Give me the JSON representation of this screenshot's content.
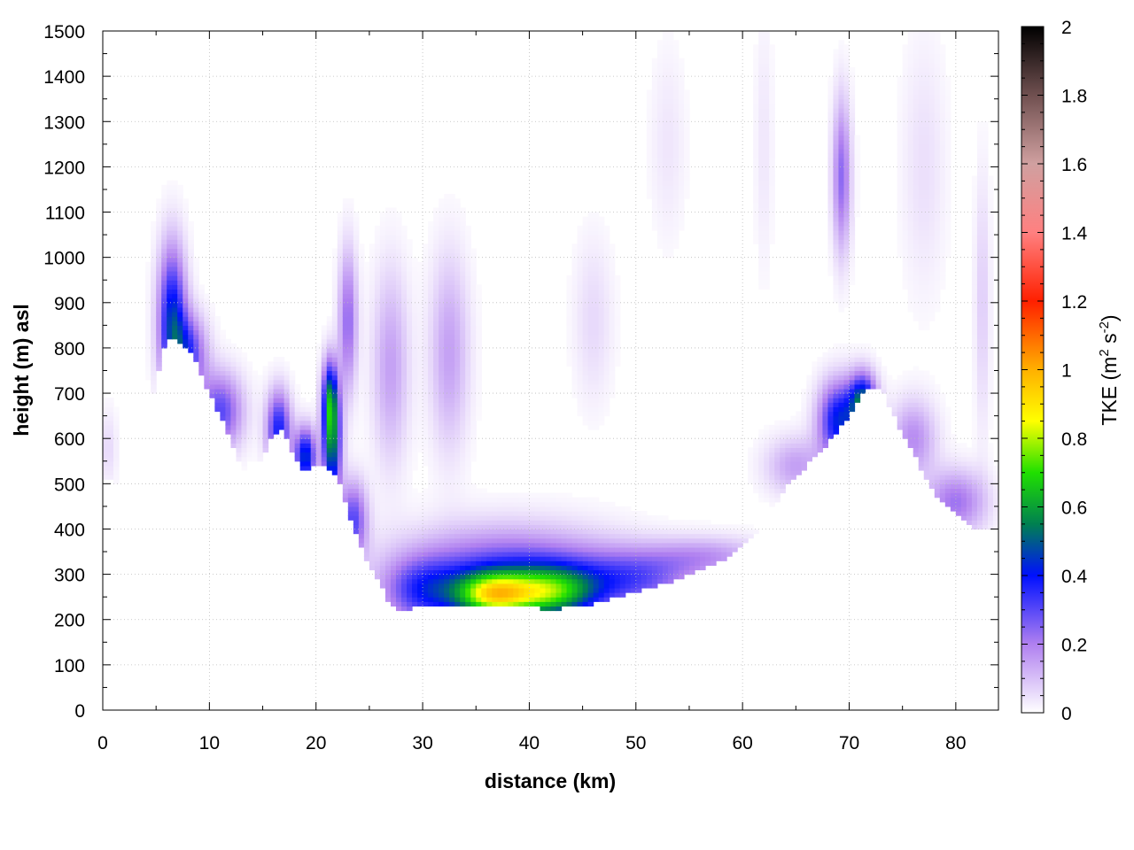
{
  "chart_data": {
    "type": "heatmap",
    "xlabel": "distance (km)",
    "ylabel": "height (m) asl",
    "xlim": [
      0,
      84
    ],
    "ylim": [
      0,
      1500
    ],
    "x_ticks": [
      0,
      10,
      20,
      30,
      40,
      50,
      60,
      70,
      80
    ],
    "y_ticks": [
      0,
      100,
      200,
      300,
      400,
      500,
      600,
      700,
      800,
      900,
      1000,
      1100,
      1200,
      1300,
      1400,
      1500
    ],
    "grid": true,
    "colorbar": {
      "label_main": "TKE (m",
      "label_sup1": "2",
      "label_mid": " s",
      "label_sup2": "-2",
      "label_end": ")",
      "range": [
        0,
        2
      ],
      "ticks": [
        "0",
        "0.2",
        "0.4",
        "0.6",
        "0.8",
        "1",
        "1.2",
        "1.4",
        "1.6",
        "1.8",
        "2"
      ],
      "stops": [
        {
          "v": 0.0,
          "color": "#ffffff"
        },
        {
          "v": 0.2,
          "color": "#b080f0"
        },
        {
          "v": 0.4,
          "color": "#0010ff"
        },
        {
          "v": 0.55,
          "color": "#008050"
        },
        {
          "v": 0.7,
          "color": "#20e000"
        },
        {
          "v": 0.85,
          "color": "#ffff00"
        },
        {
          "v": 1.0,
          "color": "#ffb000"
        },
        {
          "v": 1.2,
          "color": "#ff2000"
        },
        {
          "v": 1.4,
          "color": "#ff8080"
        },
        {
          "v": 1.6,
          "color": "#d0a0a0"
        },
        {
          "v": 1.8,
          "color": "#705050"
        },
        {
          "v": 2.0,
          "color": "#000000"
        }
      ]
    },
    "terrain": [
      [
        0,
        510
      ],
      [
        1,
        505
      ],
      [
        2,
        500
      ],
      [
        3,
        520
      ],
      [
        4,
        620
      ],
      [
        5,
        730
      ],
      [
        6,
        820
      ],
      [
        7,
        820
      ],
      [
        8,
        800
      ],
      [
        9,
        760
      ],
      [
        10,
        700
      ],
      [
        11,
        650
      ],
      [
        12,
        600
      ],
      [
        13,
        540
      ],
      [
        14,
        520
      ],
      [
        15,
        560
      ],
      [
        16,
        610
      ],
      [
        17,
        620
      ],
      [
        18,
        560
      ],
      [
        19,
        525
      ],
      [
        20,
        540
      ],
      [
        21,
        540
      ],
      [
        22,
        520
      ],
      [
        23,
        440
      ],
      [
        24,
        370
      ],
      [
        25,
        320
      ],
      [
        26,
        280
      ],
      [
        27,
        230
      ],
      [
        28,
        215
      ],
      [
        29,
        225
      ],
      [
        30,
        235
      ],
      [
        32,
        235
      ],
      [
        34,
        230
      ],
      [
        36,
        228
      ],
      [
        38,
        228
      ],
      [
        40,
        228
      ],
      [
        42,
        222
      ],
      [
        44,
        230
      ],
      [
        46,
        235
      ],
      [
        48,
        250
      ],
      [
        50,
        260
      ],
      [
        52,
        275
      ],
      [
        54,
        290
      ],
      [
        56,
        310
      ],
      [
        58,
        330
      ],
      [
        60,
        360
      ],
      [
        62,
        410
      ],
      [
        64,
        490
      ],
      [
        66,
        540
      ],
      [
        68,
        590
      ],
      [
        70,
        650
      ],
      [
        71,
        690
      ],
      [
        72,
        715
      ],
      [
        73,
        710
      ],
      [
        74,
        660
      ],
      [
        75,
        610
      ],
      [
        76,
        570
      ],
      [
        77,
        520
      ],
      [
        78,
        480
      ],
      [
        79,
        460
      ],
      [
        80,
        440
      ],
      [
        81,
        420
      ],
      [
        82,
        400
      ],
      [
        83,
        400
      ]
    ],
    "tke_features": [
      {
        "x": 6.5,
        "y": 870,
        "sx": 0.9,
        "sy": 110,
        "v": 0.42
      },
      {
        "x": 8.0,
        "y": 790,
        "sx": 1.2,
        "sy": 60,
        "v": 0.32
      },
      {
        "x": 11.0,
        "y": 660,
        "sx": 1.5,
        "sy": 60,
        "v": 0.3
      },
      {
        "x": 16.5,
        "y": 620,
        "sx": 0.8,
        "sy": 60,
        "v": 0.38
      },
      {
        "x": 19.0,
        "y": 560,
        "sx": 0.7,
        "sy": 45,
        "v": 0.45
      },
      {
        "x": 21.5,
        "y": 590,
        "sx": 0.6,
        "sy": 90,
        "v": 0.52
      },
      {
        "x": 21.3,
        "y": 690,
        "sx": 0.5,
        "sy": 60,
        "v": 0.38
      },
      {
        "x": 23.0,
        "y": 860,
        "sx": 0.6,
        "sy": 110,
        "v": 0.24
      },
      {
        "x": 23.5,
        "y": 420,
        "sx": 0.9,
        "sy": 60,
        "v": 0.3
      },
      {
        "x": 27.0,
        "y": 760,
        "sx": 1.2,
        "sy": 150,
        "v": 0.15
      },
      {
        "x": 32.5,
        "y": 790,
        "sx": 1.3,
        "sy": 150,
        "v": 0.15
      },
      {
        "x": 36.5,
        "y": 255,
        "sx": 2.5,
        "sy": 35,
        "v": 0.62
      },
      {
        "x": 42.0,
        "y": 260,
        "sx": 3.0,
        "sy": 40,
        "v": 0.5
      },
      {
        "x": 38.0,
        "y": 300,
        "sx": 7.0,
        "sy": 70,
        "v": 0.32
      },
      {
        "x": 30.0,
        "y": 260,
        "sx": 2.5,
        "sy": 50,
        "v": 0.25
      },
      {
        "x": 50.0,
        "y": 290,
        "sx": 4.0,
        "sy": 45,
        "v": 0.24
      },
      {
        "x": 57.0,
        "y": 340,
        "sx": 4.0,
        "sy": 30,
        "v": 0.15
      },
      {
        "x": 46.0,
        "y": 860,
        "sx": 1.3,
        "sy": 130,
        "v": 0.06
      },
      {
        "x": 53.0,
        "y": 1250,
        "sx": 1.2,
        "sy": 150,
        "v": 0.04
      },
      {
        "x": 62.0,
        "y": 1250,
        "sx": 0.6,
        "sy": 200,
        "v": 0.04
      },
      {
        "x": 69.3,
        "y": 1180,
        "sx": 0.6,
        "sy": 120,
        "v": 0.24
      },
      {
        "x": 69.0,
        "y": 640,
        "sx": 1.3,
        "sy": 60,
        "v": 0.42
      },
      {
        "x": 71.3,
        "y": 680,
        "sx": 0.9,
        "sy": 45,
        "v": 0.5
      },
      {
        "x": 65.0,
        "y": 540,
        "sx": 2.0,
        "sy": 45,
        "v": 0.15
      },
      {
        "x": 76.0,
        "y": 600,
        "sx": 1.5,
        "sy": 60,
        "v": 0.18
      },
      {
        "x": 80.0,
        "y": 460,
        "sx": 2.0,
        "sy": 50,
        "v": 0.22
      },
      {
        "x": 77.0,
        "y": 1200,
        "sx": 1.5,
        "sy": 200,
        "v": 0.05
      },
      {
        "x": 82.5,
        "y": 900,
        "sx": 0.5,
        "sy": 200,
        "v": 0.08
      },
      {
        "x": 0.5,
        "y": 580,
        "sx": 0.6,
        "sy": 60,
        "v": 0.06
      }
    ]
  }
}
